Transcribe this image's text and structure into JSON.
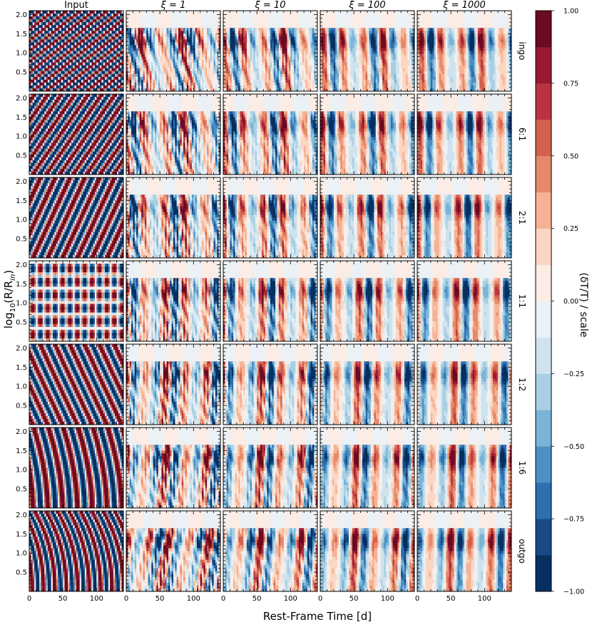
{
  "chart_data": {
    "type": "heatmap",
    "description_of_grid": "7 rows x 5 columns of filled-contour panels",
    "column_titles": [
      "Input",
      "ξ = 1",
      "ξ = 10",
      "ξ = 100",
      "ξ = 1000"
    ],
    "column_xi": [
      null,
      1,
      10,
      100,
      1000
    ],
    "row_labels": [
      "ingo",
      "6:1",
      "2:1",
      "1:1",
      "1:2",
      "1:6",
      "outgo"
    ],
    "xlabel": "Rest-Frame Time [d]",
    "ylabel_prefix": "log",
    "ylabel_sub": "10",
    "ylabel_arg": "(R/R",
    "ylabel_arg_sub": "in",
    "ylabel_close": ")",
    "xlim": [
      0,
      140
    ],
    "ylim": [
      0.0,
      2.1
    ],
    "xticks": [
      0,
      50,
      100
    ],
    "xtick_labels": [
      "0",
      "50",
      "100"
    ],
    "yticks": [
      0.5,
      1.0,
      1.5,
      2.0
    ],
    "ytick_labels": [
      "0.5",
      "1.0",
      "1.5",
      "2.0"
    ],
    "colorbar": {
      "label": "(δT/T) / scale",
      "range": [
        -1.0,
        1.0
      ],
      "levels": 16,
      "ticks": [
        1.0,
        0.75,
        0.5,
        0.25,
        0.0,
        -0.25,
        -0.5,
        -0.75,
        -1.0
      ],
      "tick_labels": [
        "1.00",
        "0.75",
        "0.50",
        "0.25",
        "0.00",
        "−0.25",
        "−0.50",
        "−0.75",
        "−1.00"
      ],
      "colors": [
        "#053061",
        "#174a86",
        "#2f6eaf",
        "#4c91c2",
        "#7bb4d6",
        "#a8cfe3",
        "#cfe3ee",
        "#ebf1f5",
        "#fbece5",
        "#fbd6c2",
        "#f5b294",
        "#e6896b",
        "#d26150",
        "#b93440",
        "#981a30",
        "#6b0b22"
      ]
    }
  }
}
